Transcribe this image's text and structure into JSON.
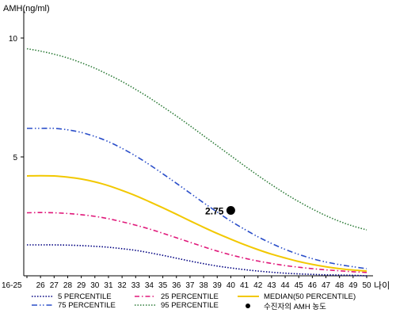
{
  "chart_data": {
    "type": "line",
    "ylabel": "AMH(ng/ml)",
    "xlabel": "나이",
    "ylim": [
      0,
      11
    ],
    "yticks": [
      5,
      10
    ],
    "categories": [
      "16-25",
      "26",
      "27",
      "28",
      "29",
      "30",
      "31",
      "32",
      "33",
      "34",
      "35",
      "36",
      "37",
      "38",
      "39",
      "40",
      "41",
      "42",
      "43",
      "44",
      "45",
      "46",
      "47",
      "48",
      "49",
      "50"
    ],
    "series": [
      {
        "name": "5 PERCENTILE",
        "color": "#000080",
        "style": "dotted",
        "values": [
          1.3,
          1.3,
          1.3,
          1.29,
          1.27,
          1.24,
          1.2,
          1.14,
          1.07,
          0.97,
          0.86,
          0.74,
          0.62,
          0.51,
          0.41,
          0.33,
          0.26,
          0.2,
          0.15,
          0.11,
          0.08,
          0.06,
          0.04,
          0.03,
          0.02,
          0.0
        ]
      },
      {
        "name": "25 PERCENTILE",
        "color": "#e0187a",
        "style": "dashdot",
        "values": [
          2.65,
          2.66,
          2.65,
          2.62,
          2.57,
          2.5,
          2.4,
          2.27,
          2.13,
          1.97,
          1.79,
          1.6,
          1.41,
          1.22,
          1.04,
          0.88,
          0.74,
          0.62,
          0.52,
          0.43,
          0.36,
          0.3,
          0.25,
          0.21,
          0.17,
          0.14
        ]
      },
      {
        "name": "MEDIAN(50 PERCENTILE)",
        "color": "#f2c800",
        "style": "solid",
        "values": [
          4.2,
          4.21,
          4.2,
          4.15,
          4.07,
          3.95,
          3.79,
          3.59,
          3.37,
          3.12,
          2.86,
          2.59,
          2.31,
          2.04,
          1.78,
          1.54,
          1.31,
          1.1,
          0.91,
          0.75,
          0.6,
          0.48,
          0.38,
          0.3,
          0.24,
          0.2
        ]
      },
      {
        "name": "75 PERCENTILE",
        "color": "#2a4ec9",
        "style": "dashdotdot",
        "values": [
          6.2,
          6.2,
          6.2,
          6.14,
          6.03,
          5.86,
          5.64,
          5.36,
          5.04,
          4.68,
          4.29,
          3.89,
          3.48,
          3.07,
          2.68,
          2.3,
          1.96,
          1.64,
          1.36,
          1.11,
          0.9,
          0.72,
          0.58,
          0.47,
          0.38,
          0.3
        ]
      },
      {
        "name": "95 PERCENTILE",
        "color": "#2f7d3a",
        "style": "dotted",
        "values": [
          9.55,
          9.45,
          9.32,
          9.16,
          8.96,
          8.73,
          8.46,
          8.17,
          7.84,
          7.49,
          7.11,
          6.72,
          6.31,
          5.89,
          5.47,
          5.05,
          4.63,
          4.22,
          3.83,
          3.46,
          3.12,
          2.81,
          2.53,
          2.29,
          2.09,
          1.93
        ]
      }
    ],
    "patient": {
      "label": "수진자의 AMH 농도",
      "x": "40",
      "y": 2.75,
      "text": "2.75",
      "color": "#000000"
    },
    "legend": {
      "placement": "bottom"
    }
  }
}
